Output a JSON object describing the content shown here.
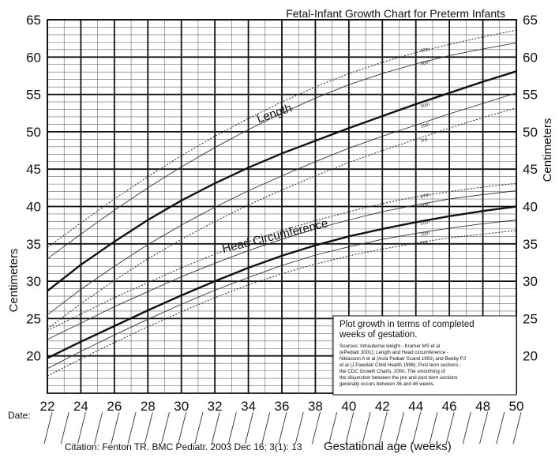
{
  "chart_data": {
    "type": "line",
    "title": "Fetal-Infant Growth Chart for Preterm Infants",
    "xlabel": "Gestational age (weeks)",
    "ylabel": "Centimeters",
    "xlim": [
      22,
      50
    ],
    "ylim": [
      15,
      65
    ],
    "x_ticks": [
      22,
      24,
      26,
      28,
      30,
      32,
      34,
      36,
      38,
      40,
      42,
      44,
      46,
      48,
      50
    ],
    "y_ticks": [
      20,
      25,
      30,
      35,
      40,
      45,
      50,
      55,
      60,
      65
    ],
    "grid": true,
    "date_label": "Date:",
    "citation": "Citation: Fenton TR.  BMC Pediatr. 2003 Dec 16; 3(1): 13",
    "annotations": [
      {
        "text": "Length",
        "x": 34.6,
        "y": 51.2,
        "angle": -19
      },
      {
        "text": "Head Circumference",
        "x": 32.5,
        "y": 33.8,
        "angle": -14
      }
    ],
    "note": {
      "title_lines": [
        "Plot growth in terms of completed",
        "weeks of gestation."
      ],
      "body_lines": [
        "Sources: Intrauterine weight - Kramer MS et al",
        "(ePediatr 2001); Length and Head circumference -",
        "Niklasson A et al (Acta Pediatr Scand 1991) and Beeby PJ",
        "et al (J Paediatr Child Health 1996); Post term sections -",
        "the CDC Growth Charts, 2000.  The smoothing of",
        "the disjunction between the pre and post term sections",
        "generally occurs between 36 and 46 weeks."
      ]
    },
    "series": [
      {
        "name": "Length 97th",
        "group": "length",
        "percentile": "97th",
        "style": "dotted",
        "x": [
          22,
          24,
          26,
          28,
          30,
          32,
          34,
          36,
          38,
          40,
          42,
          44,
          46,
          48,
          50
        ],
        "y": [
          34.5,
          37.8,
          41.0,
          44.0,
          46.8,
          49.4,
          51.8,
          54.0,
          56.0,
          57.8,
          59.3,
          60.6,
          61.7,
          62.7,
          63.6
        ]
      },
      {
        "name": "Length 90th",
        "group": "length",
        "percentile": "90th",
        "style": "thin",
        "x": [
          22,
          24,
          26,
          28,
          30,
          32,
          34,
          36,
          38,
          40,
          42,
          44,
          46,
          48,
          50
        ],
        "y": [
          33.0,
          36.3,
          39.5,
          42.5,
          45.3,
          47.9,
          50.3,
          52.5,
          54.5,
          56.3,
          57.8,
          59.1,
          60.2,
          61.1,
          61.9
        ]
      },
      {
        "name": "Length 50th",
        "group": "length",
        "percentile": "50th",
        "style": "bold",
        "x": [
          22,
          24,
          26,
          28,
          30,
          32,
          34,
          36,
          38,
          40,
          42,
          44,
          46,
          48,
          50
        ],
        "y": [
          28.7,
          32.2,
          35.3,
          38.2,
          40.8,
          43.1,
          45.2,
          47.1,
          48.8,
          50.5,
          52.1,
          53.7,
          55.2,
          56.7,
          58.1
        ]
      },
      {
        "name": "Length 10th",
        "group": "length",
        "percentile": "10th",
        "style": "thin",
        "x": [
          22,
          24,
          26,
          28,
          30,
          32,
          34,
          36,
          38,
          40,
          42,
          44,
          46,
          48,
          50
        ],
        "y": [
          25.5,
          28.9,
          32.0,
          34.9,
          37.5,
          39.9,
          42.1,
          44.1,
          46.0,
          47.8,
          49.4,
          50.9,
          52.4,
          53.8,
          55.2
        ]
      },
      {
        "name": "Length 3rd",
        "group": "length",
        "percentile": "3rd",
        "style": "dotted",
        "x": [
          22,
          24,
          26,
          28,
          30,
          32,
          34,
          36,
          38,
          40,
          42,
          44,
          46,
          48,
          50
        ],
        "y": [
          23.6,
          27.0,
          30.1,
          33.0,
          35.6,
          38.0,
          40.2,
          42.2,
          44.1,
          45.9,
          47.5,
          49.0,
          50.5,
          51.9,
          53.2
        ]
      },
      {
        "name": "Head Circumference 97th",
        "group": "head",
        "percentile": "97th",
        "style": "dotted",
        "x": [
          22,
          24,
          26,
          28,
          30,
          32,
          34,
          36,
          38,
          40,
          42,
          44,
          46,
          48,
          50
        ],
        "y": [
          23.4,
          25.6,
          27.8,
          29.8,
          31.8,
          33.6,
          35.3,
          36.8,
          38.1,
          39.3,
          40.4,
          41.3,
          42.0,
          42.6,
          43.1
        ]
      },
      {
        "name": "Head Circumference 90th",
        "group": "head",
        "percentile": "90th",
        "style": "thin",
        "x": [
          22,
          24,
          26,
          28,
          30,
          32,
          34,
          36,
          38,
          40,
          42,
          44,
          46,
          48,
          50
        ],
        "y": [
          22.2,
          24.4,
          26.6,
          28.6,
          30.6,
          32.4,
          34.1,
          35.6,
          37.0,
          38.2,
          39.3,
          40.2,
          41.0,
          41.6,
          42.1
        ]
      },
      {
        "name": "Head Circumference 50th",
        "group": "head",
        "percentile": "50th",
        "style": "bold",
        "x": [
          22,
          24,
          26,
          28,
          30,
          32,
          34,
          36,
          38,
          40,
          42,
          44,
          46,
          48,
          50
        ],
        "y": [
          19.7,
          21.9,
          24.0,
          26.1,
          28.1,
          30.0,
          31.8,
          33.4,
          34.8,
          36.0,
          37.0,
          37.9,
          38.7,
          39.4,
          40.0
        ]
      },
      {
        "name": "Head Circumference 10th",
        "group": "head",
        "percentile": "10th",
        "style": "thin",
        "x": [
          22,
          24,
          26,
          28,
          30,
          32,
          34,
          36,
          38,
          40,
          42,
          44,
          46,
          48,
          50
        ],
        "y": [
          18.3,
          20.6,
          22.8,
          24.9,
          26.9,
          28.8,
          30.5,
          32.1,
          33.5,
          34.6,
          35.6,
          36.4,
          37.1,
          37.7,
          38.2
        ]
      },
      {
        "name": "Head Circumference 3rd",
        "group": "head",
        "percentile": "3rd",
        "style": "dotted",
        "x": [
          22,
          24,
          26,
          28,
          30,
          32,
          34,
          36,
          38,
          40,
          42,
          44,
          46,
          48,
          50
        ],
        "y": [
          17.3,
          19.6,
          21.8,
          23.9,
          25.9,
          27.8,
          29.5,
          31.0,
          32.3,
          33.4,
          34.3,
          35.1,
          35.8,
          36.3,
          36.8
        ]
      }
    ],
    "percentile_labels": {
      "length": [
        {
          "text": "97th",
          "x": 44.3,
          "y": 60.6
        },
        {
          "text": "90th",
          "x": 44.3,
          "y": 58.9
        },
        {
          "text": "50th",
          "x": 44.3,
          "y": 53.2
        },
        {
          "text": "10th",
          "x": 44.3,
          "y": 50.5
        },
        {
          "text": "3rd",
          "x": 44.3,
          "y": 48.6
        }
      ],
      "head": [
        {
          "text": "97th",
          "x": 44.3,
          "y": 41.1
        },
        {
          "text": "90th",
          "x": 44.3,
          "y": 39.9
        },
        {
          "text": "50th",
          "x": 44.3,
          "y": 37.5
        },
        {
          "text": "10th",
          "x": 44.3,
          "y": 36.0
        },
        {
          "text": "3rd",
          "x": 44.3,
          "y": 34.9
        }
      ]
    }
  }
}
